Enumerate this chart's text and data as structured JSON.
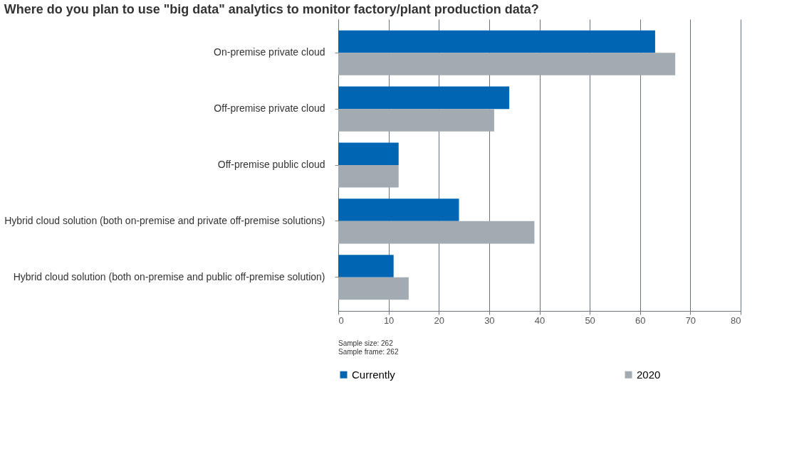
{
  "chart_data": {
    "type": "bar",
    "orientation": "horizontal",
    "title": "Where do you plan to use \"big data\" analytics to monitor factory/plant production data?",
    "categories": [
      "On-premise private cloud",
      "Off-premise private cloud",
      "Off-premise public cloud",
      "Hybrid cloud solution (both on-premise and private off-premise solutions)",
      "Hybrid cloud solution (both on-premise and public off-premise solution)"
    ],
    "series": [
      {
        "name": "Currently",
        "color": "#0066b3",
        "values": [
          63,
          34,
          12,
          24,
          11
        ]
      },
      {
        "name": "2020",
        "color": "#a2abb1",
        "values": [
          67,
          31,
          12,
          39,
          14
        ]
      }
    ],
    "xlim": [
      0,
      80
    ],
    "xticks": [
      0,
      10,
      20,
      30,
      40,
      50,
      60,
      70,
      80
    ],
    "grid": "x",
    "legend": "bottom",
    "annotations": [
      "Sample size: 262",
      "Sample frame: 262"
    ]
  }
}
